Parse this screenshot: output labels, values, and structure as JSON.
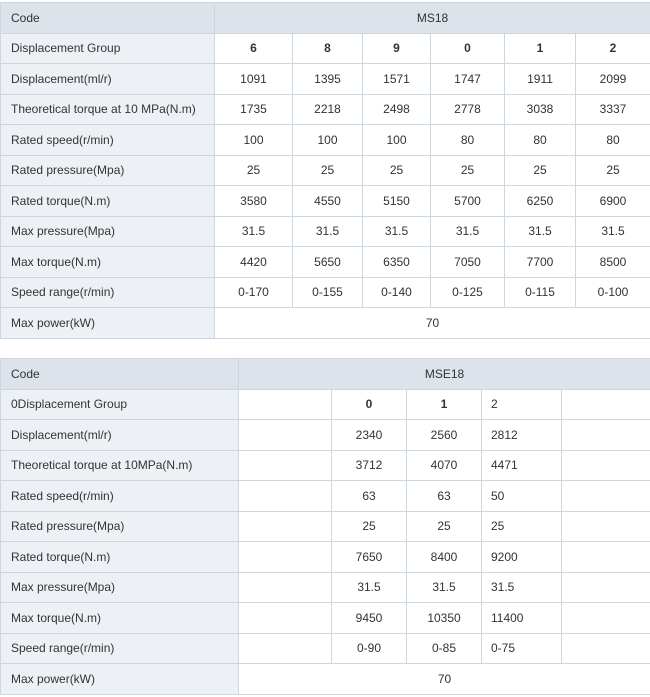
{
  "table1": {
    "code_label": "Code",
    "model": "MS18",
    "rows": [
      {
        "label": "Displacement Group",
        "values": [
          "6",
          "8",
          "9",
          "0",
          "1",
          "2"
        ]
      },
      {
        "label": "Displacement(ml/r)",
        "values": [
          "1091",
          "1395",
          "1571",
          "1747",
          "1911",
          "2099"
        ]
      },
      {
        "label": "Theoretical torque at 10 MPa(N.m)",
        "values": [
          "1735",
          "2218",
          "2498",
          "2778",
          "3038",
          "3337"
        ]
      },
      {
        "label": "Rated speed(r/min)",
        "values": [
          "100",
          "100",
          "100",
          "80",
          "80",
          "80"
        ]
      },
      {
        "label": "Rated pressure(Mpa)",
        "values": [
          "25",
          "25",
          "25",
          "25",
          "25",
          "25"
        ]
      },
      {
        "label": "Rated torque(N.m)",
        "values": [
          "3580",
          "4550",
          "5150",
          "5700",
          "6250",
          "6900"
        ]
      },
      {
        "label": "Max pressure(Mpa)",
        "values": [
          "31.5",
          "31.5",
          "31.5",
          "31.5",
          "31.5",
          "31.5"
        ]
      },
      {
        "label": "Max torque(N.m)",
        "values": [
          "4420",
          "5650",
          "6350",
          "7050",
          "7700",
          "8500"
        ]
      },
      {
        "label": "Speed range(r/min)",
        "values": [
          "0-170",
          "0-155",
          "0-140",
          "0-125",
          "0-115",
          "0-100"
        ]
      }
    ],
    "max_power_label": "Max power(kW)",
    "max_power_value": "70"
  },
  "table2": {
    "code_label": "Code",
    "model": "MSE18",
    "rows": [
      {
        "label": "0Displacement Group",
        "values": [
          "",
          "0",
          "1",
          "2",
          ""
        ]
      },
      {
        "label": "Displacement(ml/r)",
        "values": [
          "",
          "2340",
          "2560",
          "2812",
          ""
        ]
      },
      {
        "label": "Theoretical torque at 10MPa(N.m)",
        "values": [
          "",
          "3712",
          "4070",
          "4471",
          ""
        ]
      },
      {
        "label": "Rated speed(r/min)",
        "values": [
          "",
          "63",
          "63",
          "50",
          ""
        ]
      },
      {
        "label": "Rated pressure(Mpa)",
        "values": [
          "",
          "25",
          "25",
          "25",
          ""
        ]
      },
      {
        "label": "Rated torque(N.m)",
        "values": [
          "",
          "7650",
          "8400",
          "9200",
          ""
        ]
      },
      {
        "label": "Max pressure(Mpa)",
        "values": [
          "",
          "31.5",
          "31.5",
          "31.5",
          ""
        ]
      },
      {
        "label": "Max torque(N.m)",
        "values": [
          "",
          "9450",
          "10350",
          "11400",
          ""
        ]
      },
      {
        "label": "Speed range(r/min)",
        "values": [
          "",
          "0-90",
          "0-85",
          "0-75",
          ""
        ]
      }
    ],
    "max_power_label": "Max power(kW)",
    "max_power_value": "70"
  }
}
